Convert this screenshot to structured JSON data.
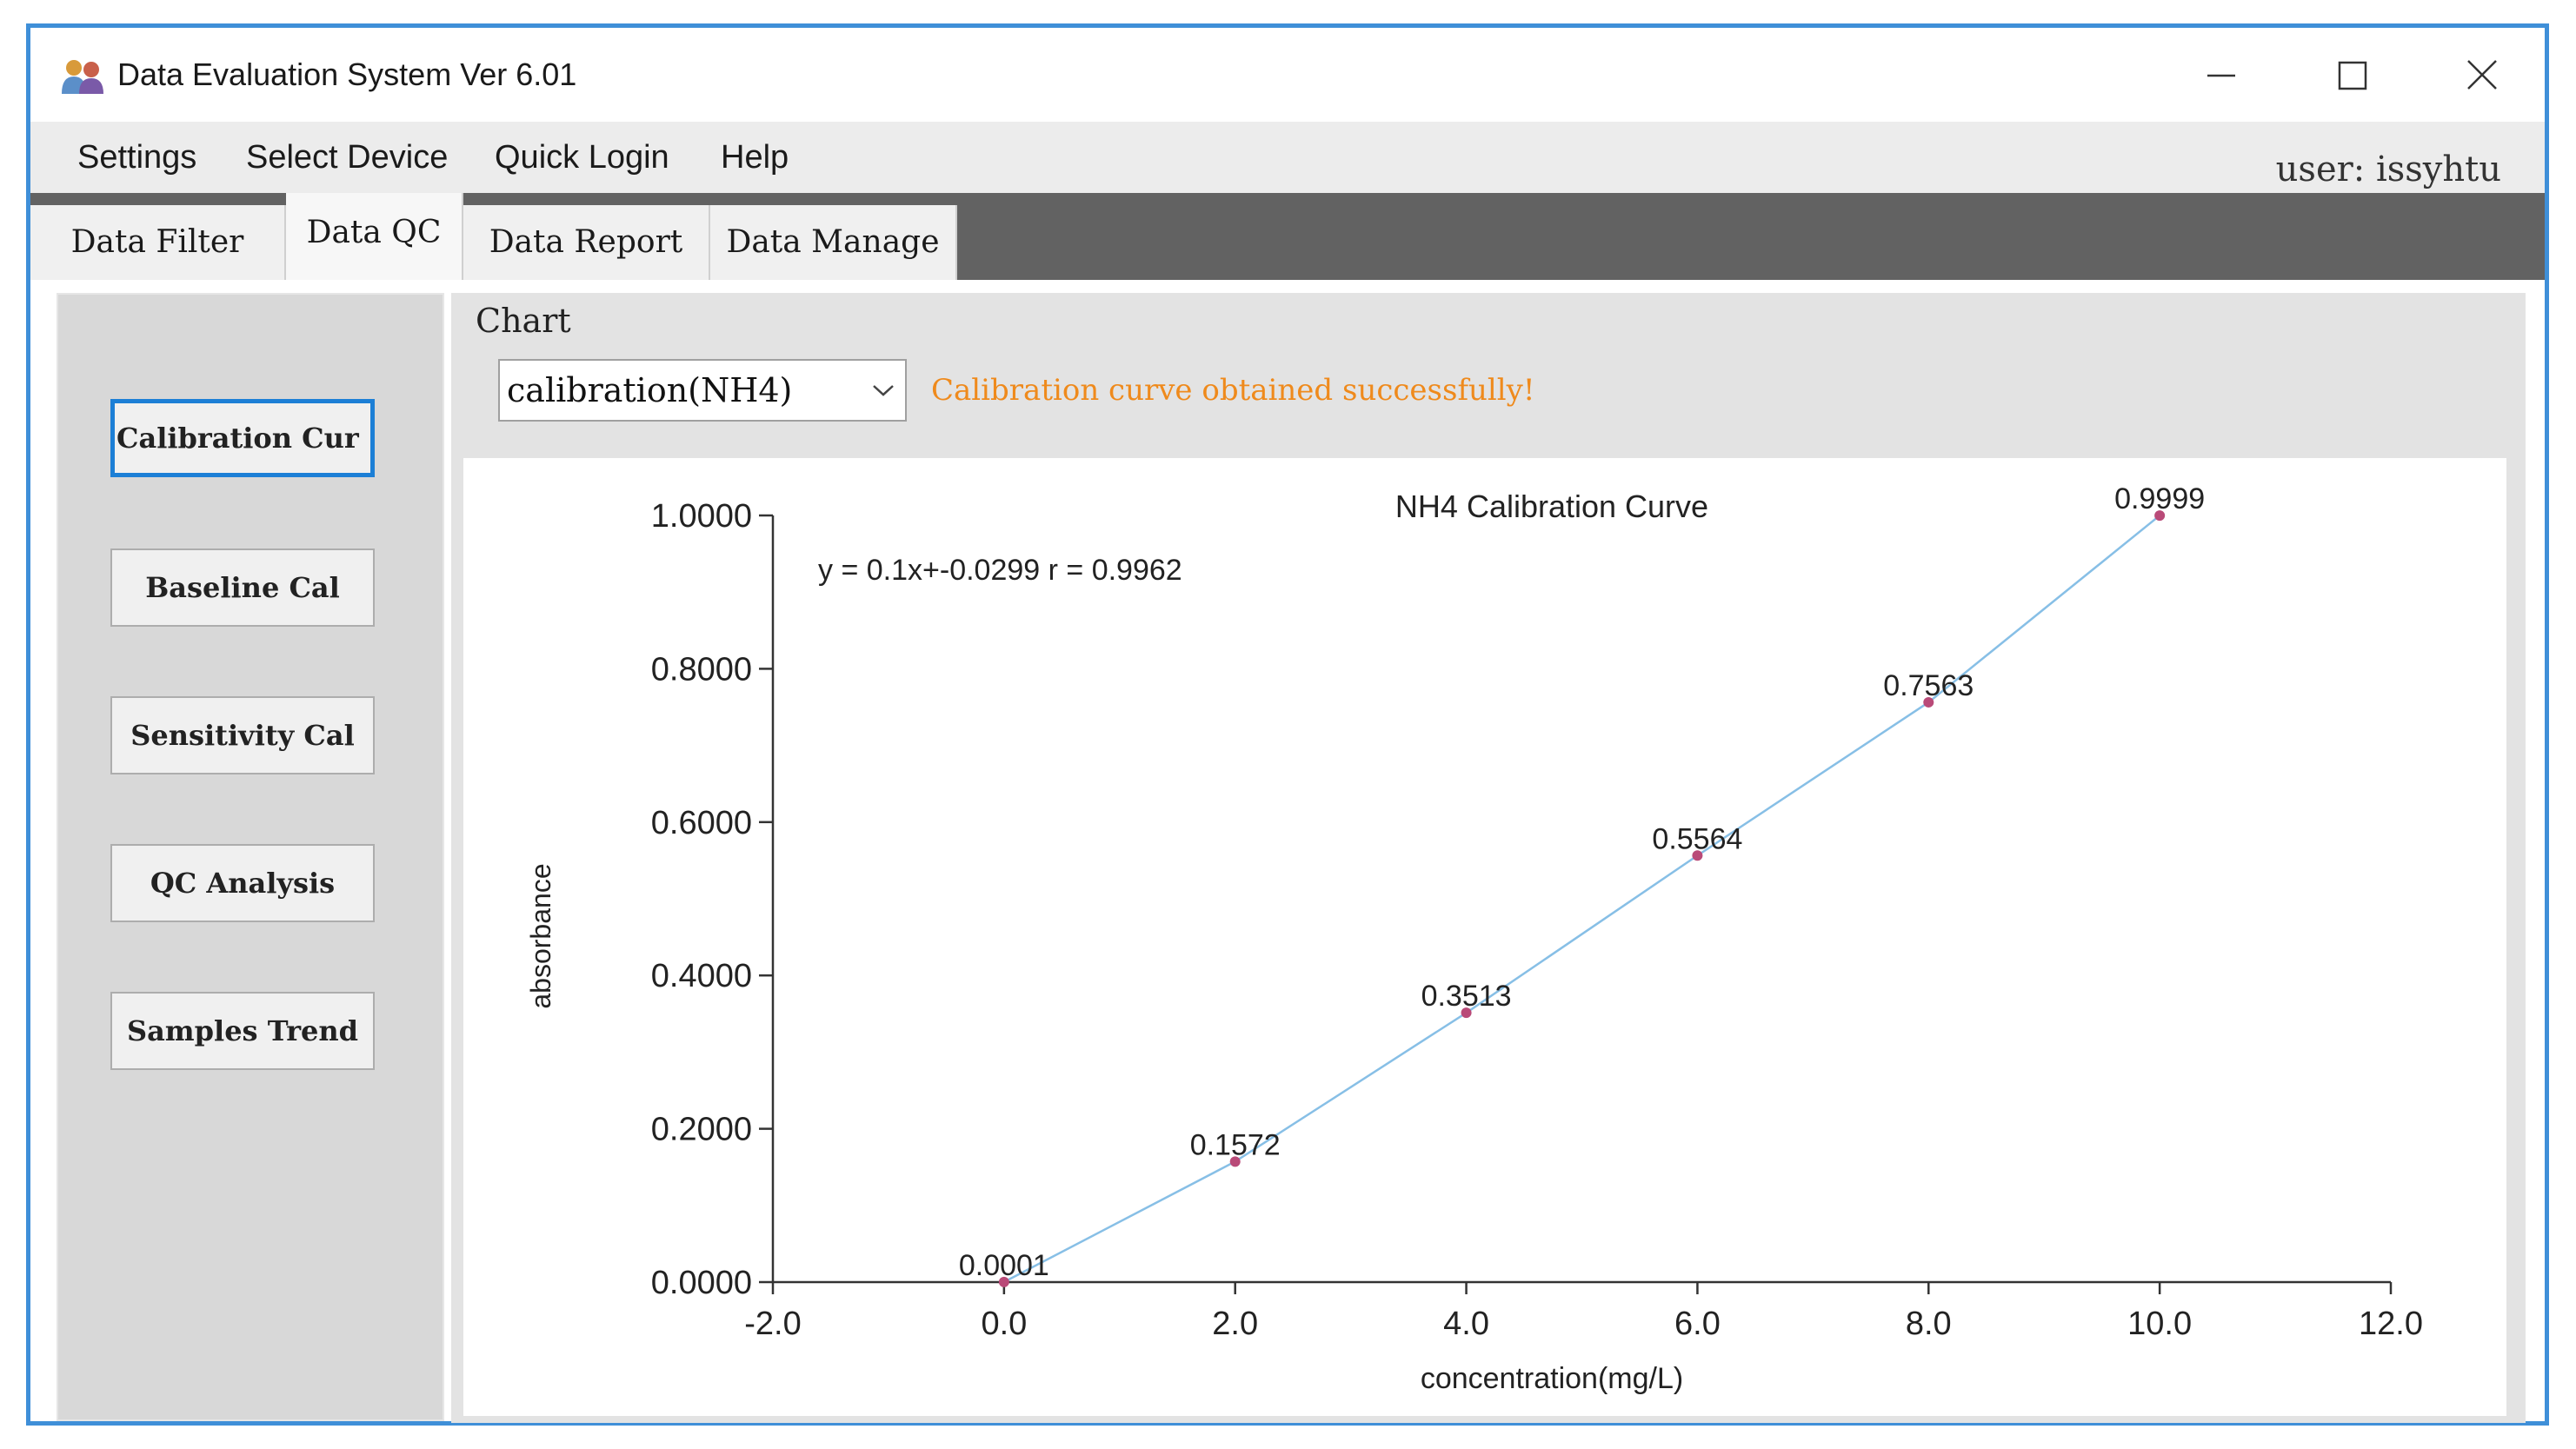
{
  "window": {
    "title": "Data Evaluation System Ver 6.01",
    "icon": "users-icon",
    "controls": [
      "minimize-icon",
      "maximize-icon",
      "close-icon"
    ]
  },
  "menu": {
    "items": [
      "Settings",
      "Select Device",
      "Quick Login",
      "Help"
    ],
    "user_label": "user: issyhtu"
  },
  "tabs": [
    {
      "label": "Data Filter",
      "active": false
    },
    {
      "label": "Data QC",
      "active": true
    },
    {
      "label": "Data Report",
      "active": false
    },
    {
      "label": "Data Manage",
      "active": false
    }
  ],
  "sidebar": {
    "buttons": [
      {
        "label": "Calibration Cur",
        "focused": true
      },
      {
        "label": "Baseline Cal",
        "focused": false
      },
      {
        "label": "Sensitivity Cal",
        "focused": false
      },
      {
        "label": "QC Analysis",
        "focused": false
      },
      {
        "label": "Samples Trend",
        "focused": false
      }
    ]
  },
  "chart_panel": {
    "group_label": "Chart",
    "selected": "calibration(NH4)",
    "status": "Calibration curve obtained successfully!"
  },
  "colors": {
    "line": "#87bfe6",
    "point": "#b94a78",
    "status": "#ef8a1c",
    "frame": "#3f8fd8"
  },
  "chart_data": {
    "type": "line",
    "title": "NH4   Calibration Curve",
    "equation": "y = 0.1x+-0.0299   r =  0.9962",
    "xlabel": "concentration(mg/L)",
    "ylabel": "absorbance",
    "xlim": [
      -2,
      12
    ],
    "ylim": [
      0,
      1
    ],
    "x_ticks": [
      "-2.0",
      "0.0",
      "2.0",
      "4.0",
      "6.0",
      "8.0",
      "10.0",
      "12.0"
    ],
    "y_ticks": [
      "0.0000",
      "0.2000",
      "0.4000",
      "0.6000",
      "0.8000",
      "1.0000"
    ],
    "grid": false,
    "x": [
      0,
      2,
      4,
      6,
      8,
      10
    ],
    "y": [
      0.0001,
      0.1572,
      0.3513,
      0.5564,
      0.7563,
      0.9999
    ],
    "point_labels": [
      "0.0001",
      "0.1572",
      "0.3513",
      "0.5564",
      "0.7563",
      "0.9999"
    ]
  }
}
